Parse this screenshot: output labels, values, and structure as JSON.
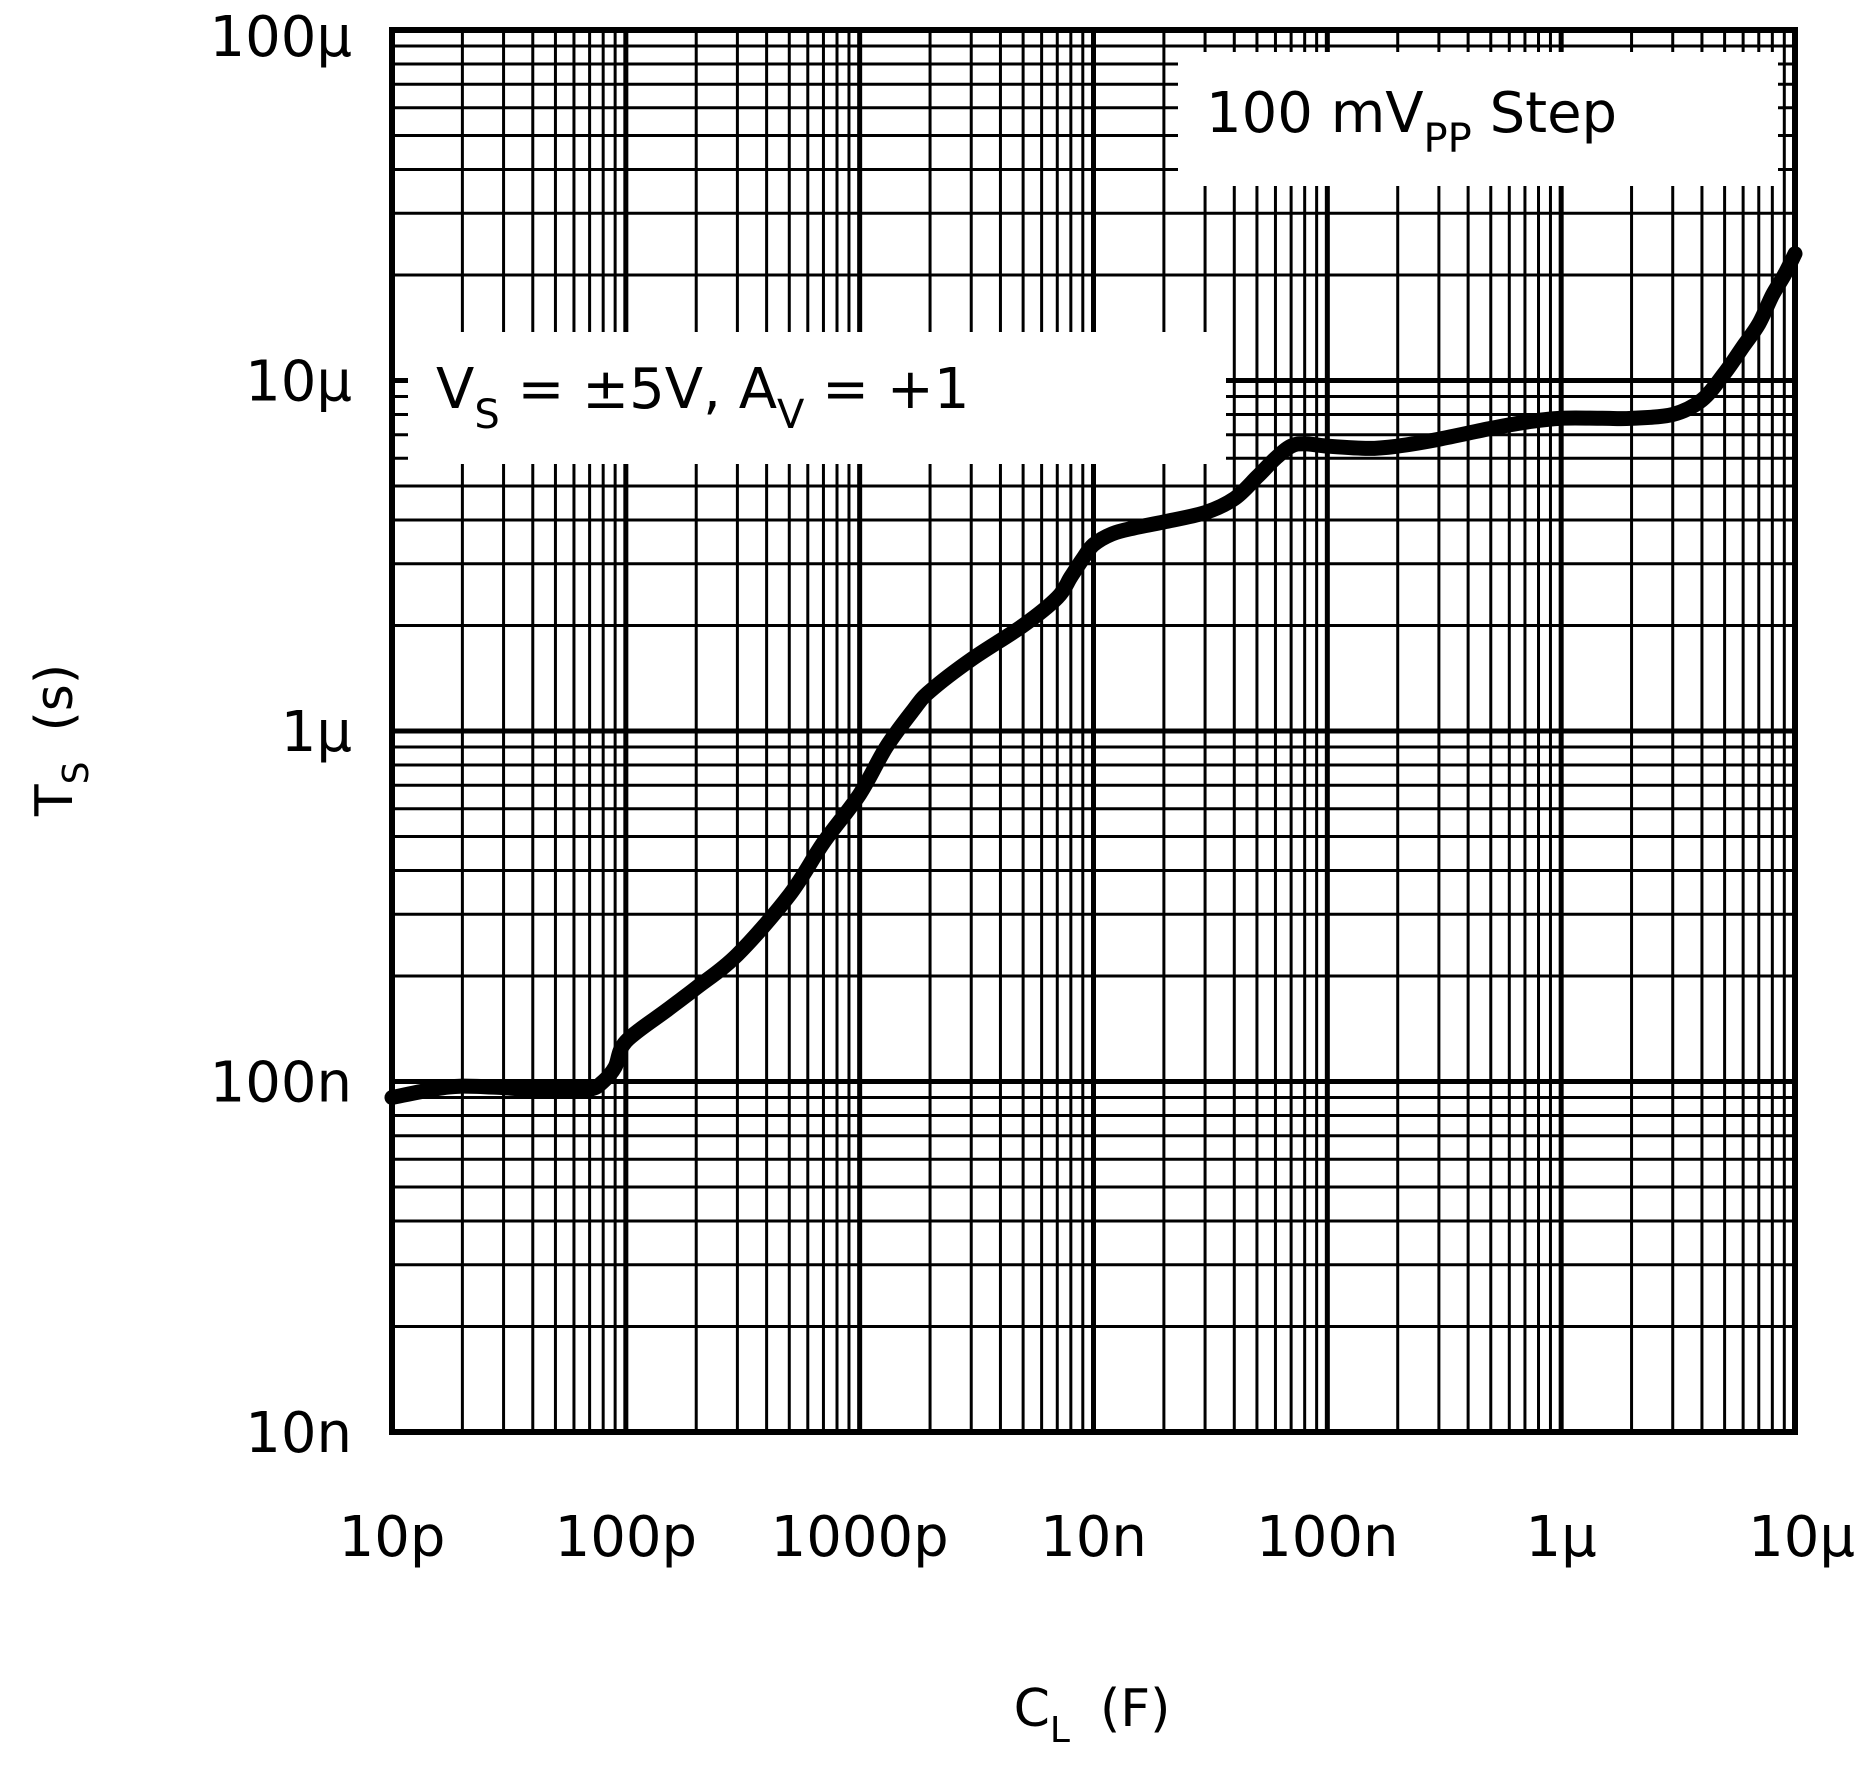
{
  "colors": {
    "ink": "#000000",
    "paper": "#ffffff"
  },
  "chart_data": {
    "type": "line",
    "scale": {
      "x": "log",
      "y": "log"
    },
    "xlim": [
      1e-11,
      1e-05
    ],
    "ylim": [
      1e-08,
      0.0001
    ],
    "grid": true,
    "xlabel": {
      "main": "C",
      "sub": "L",
      "unit": "(F)"
    },
    "ylabel": {
      "main": "T",
      "sub": "S",
      "unit": "(s)"
    },
    "x_ticks": [
      {
        "value": 1e-11,
        "label": "10p"
      },
      {
        "value": 1e-10,
        "label": "100p"
      },
      {
        "value": 1e-09,
        "label": "1000p"
      },
      {
        "value": 1e-08,
        "label": "10n"
      },
      {
        "value": 1e-07,
        "label": "100n"
      },
      {
        "value": 1e-06,
        "label": "1μ"
      },
      {
        "value": 1e-05,
        "label": "10μ"
      }
    ],
    "y_ticks": [
      {
        "value": 1e-08,
        "label": "10n"
      },
      {
        "value": 1e-07,
        "label": "100n"
      },
      {
        "value": 1e-06,
        "label": "1μ"
      },
      {
        "value": 1e-05,
        "label": "10μ"
      },
      {
        "value": 0.0001,
        "label": "100μ"
      }
    ],
    "annotations": [
      {
        "id": "step",
        "parts": [
          "100 mV",
          "PP",
          " Step"
        ]
      },
      {
        "id": "supply",
        "parts": [
          "V",
          "S",
          " = ±5V, A",
          "V",
          " = +1"
        ]
      }
    ],
    "series": [
      {
        "name": "T_S",
        "x": [
          1e-11,
          1.5e-11,
          2e-11,
          3e-11,
          5e-11,
          7e-11,
          8e-11,
          9e-11,
          1e-10,
          1.5e-10,
          2e-10,
          3e-10,
          5e-10,
          7e-10,
          1e-09,
          1.3e-09,
          1.7e-09,
          2e-09,
          3e-09,
          5e-09,
          7e-09,
          8e-09,
          9e-09,
          1e-08,
          1.2e-08,
          1.5e-08,
          2e-08,
          3e-08,
          4e-08,
          5e-08,
          6e-08,
          7e-08,
          8e-08,
          1e-07,
          1.5e-07,
          2e-07,
          3e-07,
          5e-07,
          7e-07,
          1e-06,
          1.5e-06,
          2e-06,
          3e-06,
          4e-06,
          5e-06,
          6e-06,
          7e-06,
          8e-06,
          9e-06,
          1e-05
        ],
        "y": [
          9e-08,
          9.5e-08,
          9.7e-08,
          9.6e-08,
          9.4e-08,
          9.5e-08,
          1e-07,
          1.1e-07,
          1.3e-07,
          1.6e-07,
          1.85e-07,
          2.3e-07,
          3.4e-07,
          4.8e-07,
          6.6e-07,
          9e-07,
          1.15e-06,
          1.3e-06,
          1.6e-06,
          2e-06,
          2.4e-06,
          2.75e-06,
          3.1e-06,
          3.4e-06,
          3.65e-06,
          3.8e-06,
          3.95e-06,
          4.2e-06,
          4.6e-06,
          5.3e-06,
          6e-06,
          6.5e-06,
          6.6e-06,
          6.5e-06,
          6.4e-06,
          6.5e-06,
          6.8e-06,
          7.3e-06,
          7.6e-06,
          7.8e-06,
          7.8e-06,
          7.8e-06,
          8e-06,
          8.8e-06,
          1.05e-05,
          1.25e-05,
          1.45e-05,
          1.75e-05,
          2e-05,
          2.3e-05
        ]
      }
    ]
  }
}
